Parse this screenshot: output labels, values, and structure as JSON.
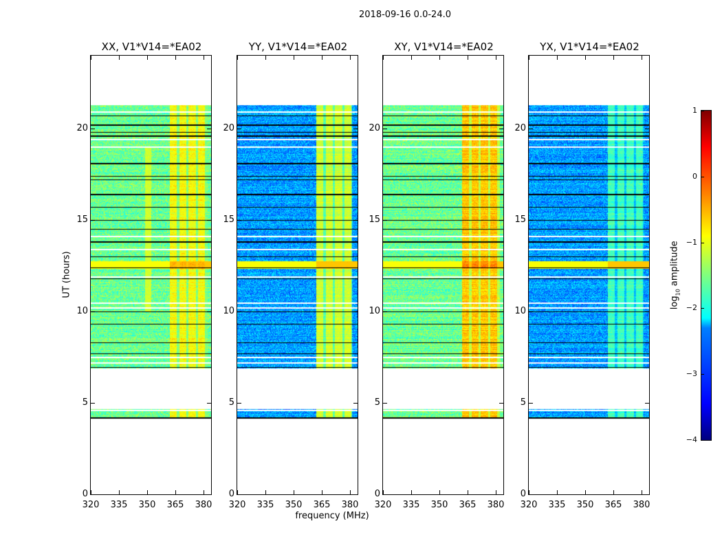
{
  "title": "2018-09-16 0.0-24.0",
  "chart_data": {
    "type": "heatmap",
    "title": "2018-09-16 0.0-24.0",
    "xlabel": "frequency (MHz)",
    "ylabel": "UT (hours)",
    "xlim": [
      320,
      384
    ],
    "ylim": [
      0,
      24
    ],
    "xticks": [
      "320",
      "335",
      "350",
      "365",
      "380"
    ],
    "yticks": [
      "0",
      "5",
      "10",
      "15",
      "20"
    ],
    "colorbar": {
      "label": "log10 amplitude",
      "label_main": "log",
      "label_sub": "10",
      "label_rest": " amplitude",
      "range": [
        -4,
        1
      ],
      "ticks": [
        "1",
        "0",
        "−1",
        "−2",
        "−3",
        "−4"
      ],
      "colormap": "jet"
    },
    "data_hours": [
      4.15,
      21.3
    ],
    "empty_gap_hours": [
      4.65,
      6.9
    ],
    "bright_band_hours": [
      12.35,
      12.75
    ],
    "flagged_black_hours": [
      4.15,
      6.95,
      7.7,
      8.3,
      9.3,
      10.0,
      11.8,
      12.4,
      13.0,
      13.8,
      14.5,
      15.0,
      15.7,
      16.4,
      17.2,
      17.4,
      18.1,
      19.6,
      19.8,
      20.2,
      20.7
    ],
    "flagged_white_hours": [
      4.6,
      7.2,
      7.5,
      10.2,
      10.45,
      11.9,
      13.4,
      14.1,
      19.0,
      19.4,
      20.9
    ],
    "panels": [
      {
        "title": "XX, V1*V14=*EA02",
        "background_log_amp": -1.6,
        "rfi_band_mhz": [
          362,
          382
        ],
        "rfi_log_amp": -0.9,
        "extra_rfi_mhz": [
          349,
          352
        ]
      },
      {
        "title": "YY, V1*V14=*EA02",
        "background_log_amp": -2.6,
        "rfi_band_mhz": [
          362,
          381
        ],
        "rfi_log_amp": -1.1,
        "extra_rfi_mhz": []
      },
      {
        "title": "XY, V1*V14=*EA02",
        "background_log_amp": -1.6,
        "rfi_band_mhz": [
          362,
          382
        ],
        "rfi_log_amp": -0.6,
        "extra_rfi_mhz": []
      },
      {
        "title": "YX, V1*V14=*EA02",
        "background_log_amp": -2.6,
        "rfi_band_mhz": [
          362,
          381
        ],
        "rfi_log_amp": -1.8,
        "extra_rfi_mhz": []
      }
    ]
  }
}
